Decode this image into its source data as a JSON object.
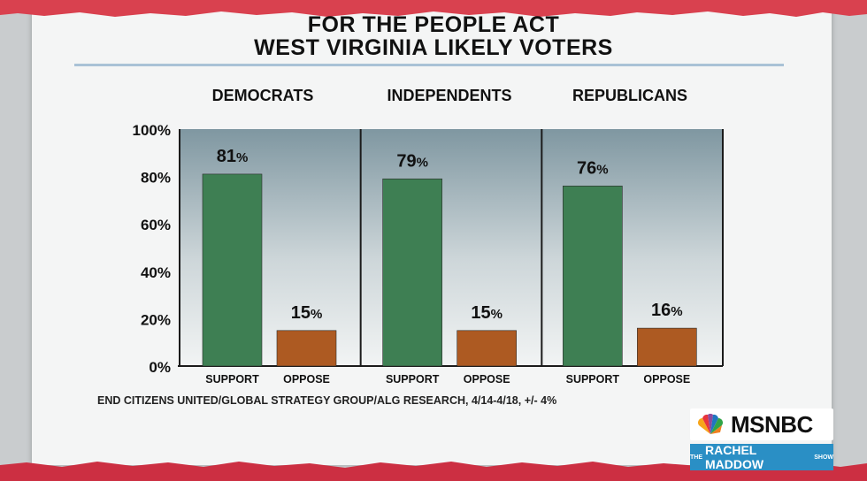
{
  "title_line1": "FOR THE PEOPLE ACT",
  "title_line2": "WEST VIRGINIA LIKELY VOTERS",
  "source": "END CITIZENS UNITED/GLOBAL STRATEGY GROUP/ALG RESEARCH, 4/14-4/18, +/- 4%",
  "network_logo": "MSNBC",
  "show_logo": {
    "prefix": "THE",
    "name": "RACHEL MADDOW",
    "suffix": "SHOW"
  },
  "colors": {
    "support": "#3e7f53",
    "oppose": "#ad5a22",
    "plot_bg_top": "#7f97a1",
    "plot_bg_bottom": "#f2f4f4",
    "top_band": "#d9414f",
    "bottom_band": "#cc2f42"
  },
  "chart_data": {
    "type": "bar",
    "ylim": [
      0,
      100
    ],
    "yticks": [
      "0%",
      "20%",
      "40%",
      "60%",
      "80%",
      "100%"
    ],
    "categories": [
      "SUPPORT",
      "OPPOSE"
    ],
    "groups": [
      {
        "name": "DEMOCRATS",
        "values": [
          81,
          15
        ],
        "labels": [
          "81",
          "15"
        ]
      },
      {
        "name": "INDEPENDENTS",
        "values": [
          79,
          15
        ],
        "labels": [
          "79",
          "15"
        ]
      },
      {
        "name": "REPUBLICANS",
        "values": [
          76,
          16
        ],
        "labels": [
          "76",
          "16"
        ]
      }
    ],
    "grid": false
  }
}
